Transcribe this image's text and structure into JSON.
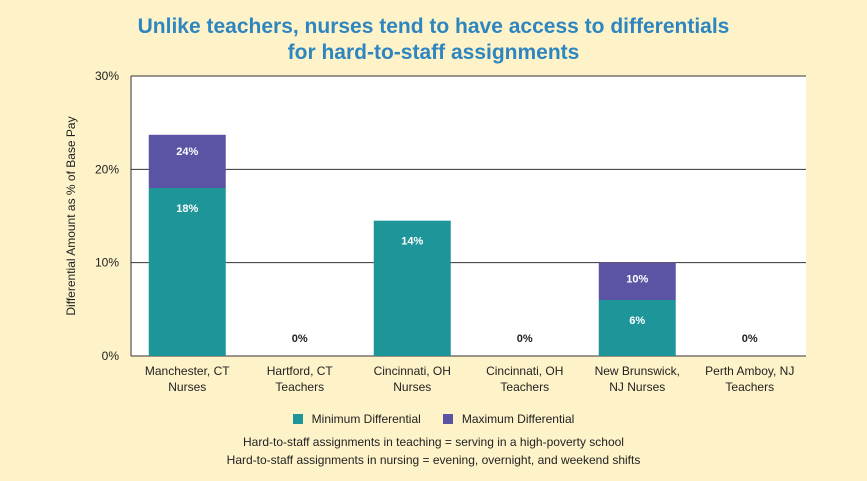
{
  "chart_data": {
    "type": "bar",
    "title_lines": [
      "Unlike teachers, nurses tend to have access to differentials",
      "for hard-to-staff assignments"
    ],
    "ylabel": "Differential Amount as % of Base Pay",
    "ylim": [
      0,
      30
    ],
    "yticks": [
      0,
      10,
      20,
      30
    ],
    "ytick_labels": [
      "0%",
      "10%",
      "20%",
      "30%"
    ],
    "grid": true,
    "categories": [
      [
        "Manchester, CT",
        "Nurses"
      ],
      [
        "Hartford, CT",
        "Teachers"
      ],
      [
        "Cincinnati, OH",
        "Nurses"
      ],
      [
        "Cincinnati, OH",
        "Teachers"
      ],
      [
        "New Brunswick,",
        "NJ  Nurses"
      ],
      [
        "Perth Amboy, NJ",
        "Teachers"
      ]
    ],
    "series": [
      {
        "name": "Minimum Differential",
        "color": "#1e9699",
        "values": [
          18,
          0,
          14.5,
          0,
          6,
          0
        ],
        "labels": [
          "18%",
          "0%",
          "14%",
          "0%",
          "6%",
          "0%"
        ]
      },
      {
        "name": "Maximum Differential",
        "color": "#5b54a5",
        "values": [
          23.7,
          0,
          14.5,
          0,
          10,
          0
        ],
        "labels": [
          "24%",
          "",
          "",
          "",
          "10%",
          ""
        ]
      }
    ],
    "legend_position": "bottom",
    "notes": [
      "Hard-to-staff assignments in teaching = serving in a high-poverty school",
      "Hard-to-staff assignments in nursing = evening, overnight, and weekend shifts"
    ]
  }
}
